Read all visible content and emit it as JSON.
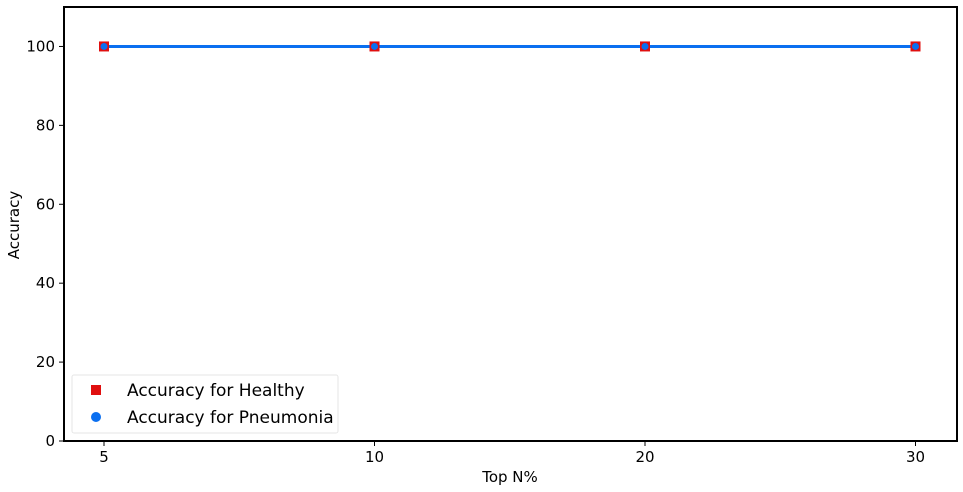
{
  "chart_data": {
    "type": "line",
    "x": [
      "5",
      "10",
      "20",
      "30"
    ],
    "xlabel": "Top N%",
    "ylabel": "Accuracy",
    "ylim": [
      0,
      110
    ],
    "yticks": [
      0,
      20,
      40,
      60,
      80,
      100
    ],
    "grid": false,
    "legend_position": "lower-left",
    "series": [
      {
        "name": "Accuracy for Healthy",
        "values": [
          100,
          100,
          100,
          100
        ],
        "color": "#e00f0f",
        "marker": "square"
      },
      {
        "name": "Accuracy for Pneumonia",
        "values": [
          100,
          100,
          100,
          100
        ],
        "color": "#0a6ff0",
        "marker": "circle"
      }
    ]
  }
}
